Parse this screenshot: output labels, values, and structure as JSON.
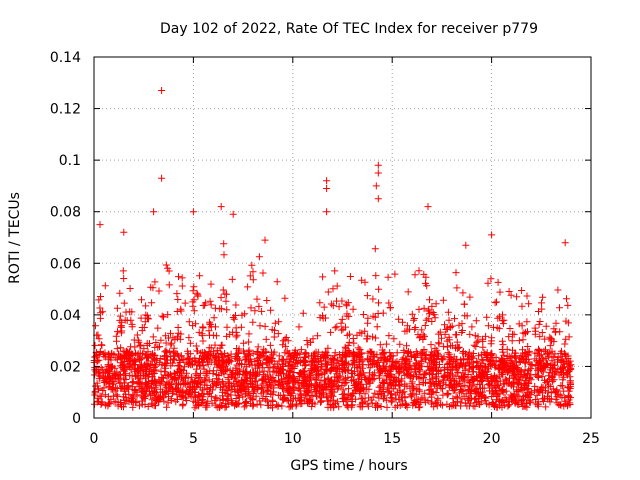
{
  "chart_data": {
    "type": "scatter",
    "title": "Day 102 of 2022, Rate Of TEC Index for receiver p779",
    "xlabel": "GPS time / hours",
    "ylabel": "ROTI / TECUs",
    "xlim": [
      0,
      25
    ],
    "ylim": [
      0,
      0.14
    ],
    "xticks": [
      0,
      5,
      10,
      15,
      20,
      25
    ],
    "xtick_labels": [
      "0",
      "5",
      "10",
      "15",
      "20",
      "25"
    ],
    "yticks": [
      0,
      0.02,
      0.04,
      0.06,
      0.08,
      0.1,
      0.12,
      0.14
    ],
    "ytick_labels": [
      "0",
      "0.02",
      "0.04",
      "0.06",
      "0.08",
      "0.1",
      "0.12",
      "0.14"
    ],
    "grid": true,
    "marker": "+",
    "color": "#ff0000",
    "series": [
      {
        "name": "ROTI",
        "description": "dense scatter of ROTI samples from 0 to 24 h, mostly 0.005–0.04 TECU/min",
        "notable_points": [
          {
            "x": 3.4,
            "y": 0.127
          },
          {
            "x": 3.4,
            "y": 0.093
          },
          {
            "x": 3.0,
            "y": 0.08
          },
          {
            "x": 6.4,
            "y": 0.082
          },
          {
            "x": 7.0,
            "y": 0.079
          },
          {
            "x": 5.0,
            "y": 0.08
          },
          {
            "x": 11.7,
            "y": 0.092
          },
          {
            "x": 11.7,
            "y": 0.089
          },
          {
            "x": 11.7,
            "y": 0.08
          },
          {
            "x": 14.3,
            "y": 0.098
          },
          {
            "x": 14.3,
            "y": 0.095
          },
          {
            "x": 14.2,
            "y": 0.09
          },
          {
            "x": 14.3,
            "y": 0.085
          },
          {
            "x": 16.8,
            "y": 0.082
          },
          {
            "x": 0.3,
            "y": 0.075
          },
          {
            "x": 1.5,
            "y": 0.072
          },
          {
            "x": 8.6,
            "y": 0.069
          },
          {
            "x": 20.0,
            "y": 0.071
          },
          {
            "x": 23.7,
            "y": 0.068
          },
          {
            "x": 18.7,
            "y": 0.067
          }
        ]
      }
    ]
  }
}
